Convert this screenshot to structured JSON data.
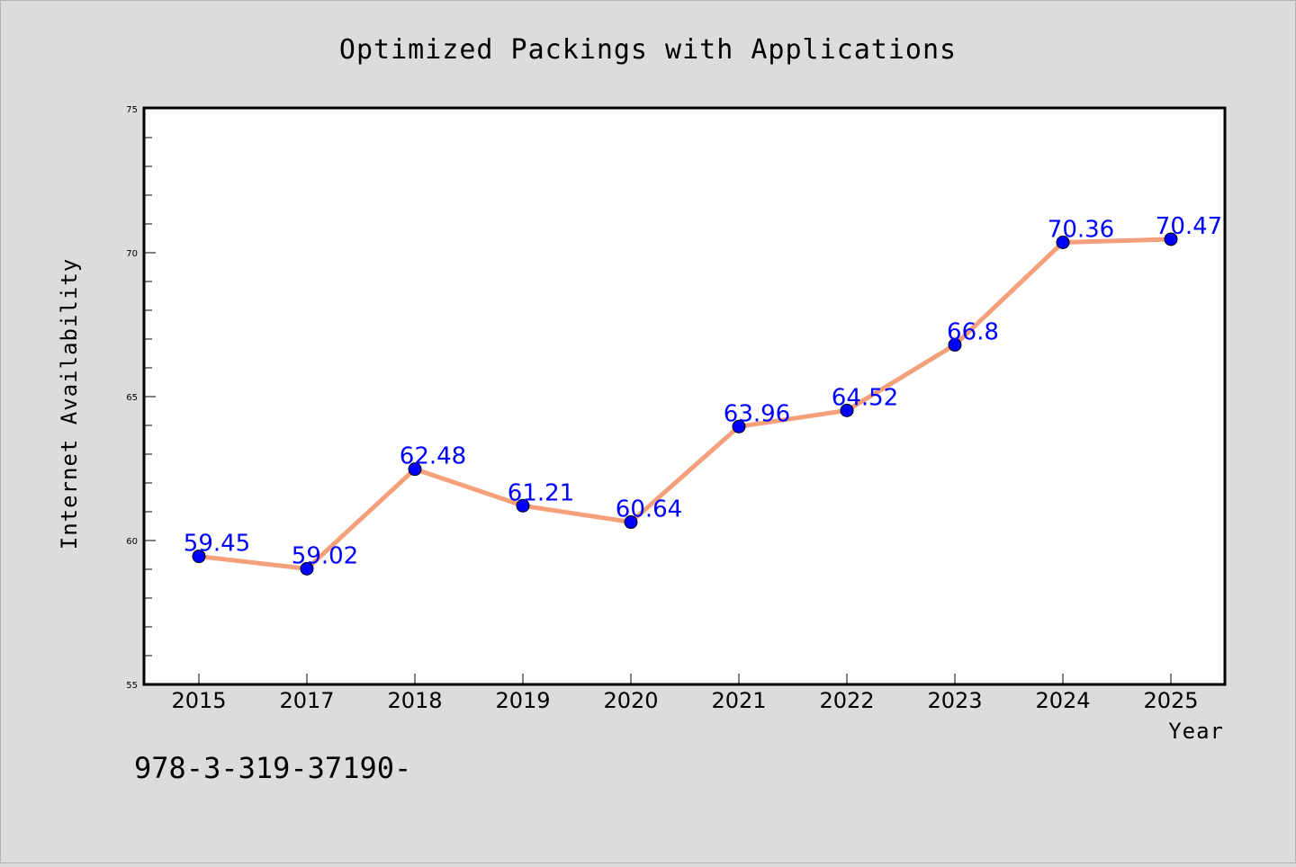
{
  "colors": {
    "background": "#dcdcdc",
    "plot_background": "#ffffff",
    "line": "#f4a07a",
    "marker": "#0000ff",
    "data_label": "#0000ff"
  },
  "footnote": "978-3-319-37190-",
  "chart_data": {
    "type": "line",
    "title": "Optimized Packings with Applications",
    "xlabel": "Year",
    "ylabel": "Internet Availability",
    "categories": [
      "2015",
      "2017",
      "2018",
      "2019",
      "2020",
      "2021",
      "2022",
      "2023",
      "2024",
      "2025"
    ],
    "series": [
      {
        "values": [
          59.45,
          59.02,
          62.48,
          61.21,
          60.64,
          63.96,
          64.52,
          66.8,
          70.36,
          70.47
        ],
        "data_labels": [
          "59.45",
          "59.02",
          "62.48",
          "61.21",
          "60.64",
          "63.96",
          "64.52",
          "66.8",
          "70.36",
          "70.47"
        ]
      }
    ],
    "ylim": [
      55,
      75
    ],
    "y_major_ticks": [
      55,
      60,
      65,
      70,
      75
    ],
    "y_minor_tick_step": 1,
    "grid": false,
    "legend": "none"
  }
}
